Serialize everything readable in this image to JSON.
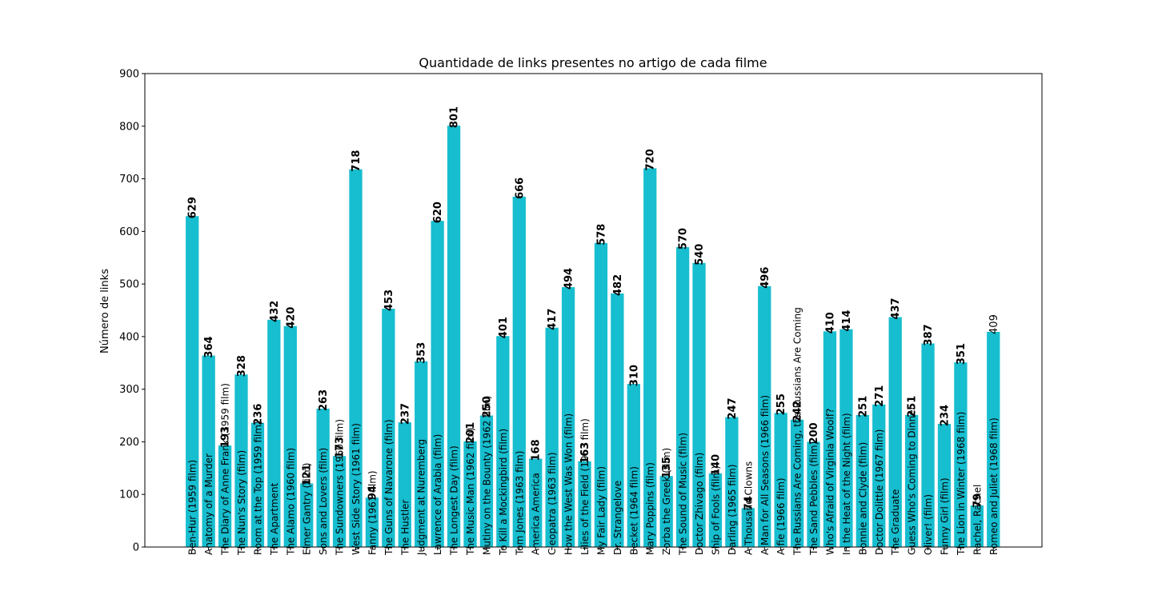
{
  "chart_data": {
    "type": "bar",
    "title": "Quantidade de links presentes no artigo de cada filme",
    "xlabel": "",
    "ylabel": "Número de links",
    "ylim": [
      0,
      900
    ],
    "yticks": [
      "0",
      "100",
      "200",
      "300",
      "400",
      "500",
      "600",
      "700",
      "800",
      "900"
    ],
    "grid": false,
    "bar_color": "#17becf",
    "categories": [
      "Ben-Hur (1959 film)",
      "Anatomy of a Murder",
      "The Diary of Anne Frank (1959 film)",
      "The Nun's Story (film)",
      "Room at the Top (1959 film)",
      "The Apartment",
      "The Alamo (1960 film)",
      "Elmer Gantry (film)",
      "Sons and Lovers (film)",
      "The Sundowners (1960 film)",
      "West Side Story (1961 film)",
      "Fanny (1961 film)",
      "The Guns of Navarone (film)",
      "The Hustler",
      "Judgment at Nuremberg",
      "Lawrence of Arabia (film)",
      "The Longest Day (film)",
      "The Music Man (1962 film)",
      "Mutiny on the Bounty (1962 film)",
      "To Kill a Mockingbird (film)",
      "Tom Jones (1963 film)",
      "America America",
      "Cleopatra (1963 film)",
      "How the West Was Won (film)",
      "Lilies of the Field (1963 film)",
      "My Fair Lady (film)",
      "Dr. Strangelove",
      "Becket (1964 film)",
      "Mary Poppins (film)",
      "Zorba the Greek (film)",
      "The Sound of Music (film)",
      "Doctor Zhivago (film)",
      "Ship of Fools (film)",
      "Darling (1965 film)",
      "A Thousand Clowns",
      "A Man for All Seasons (1966 film)",
      "Alfie (1966 film)",
      "The Russians Are Coming, the Russians Are Coming",
      "The Sand Pebbles (film)",
      "Who's Afraid of Virginia Woolf?",
      "In the Heat of the Night (film)",
      "Bonnie and Clyde (film)",
      "Doctor Dolittle (1967 film)",
      "The Graduate",
      "Guess Who's Coming to Dinner",
      "Oliver! (film)",
      "Funny Girl (film)",
      "The Lion in Winter (1968 film)",
      "Rachel, Rachel",
      "Romeo and Juliet (1968 film)"
    ],
    "values": [
      629,
      364,
      193,
      328,
      236,
      432,
      420,
      121,
      263,
      173,
      718,
      94,
      453,
      237,
      353,
      620,
      801,
      201,
      250,
      401,
      666,
      168,
      417,
      494,
      163,
      578,
      482,
      310,
      720,
      135,
      570,
      540,
      140,
      247,
      74,
      496,
      255,
      242,
      200,
      410,
      414,
      251,
      271,
      437,
      251,
      387,
      234,
      351,
      79,
      409
    ],
    "value_labels": [
      "629",
      "364",
      "193",
      "328",
      "236",
      "432",
      "420",
      "121",
      "263",
      "173",
      "718",
      "94",
      "453",
      "237",
      "353",
      "620",
      "801",
      "201",
      "250",
      "401",
      "666",
      "168",
      "417",
      "494",
      "163",
      "578",
      "482",
      "310",
      "720",
      "135",
      "570",
      "540",
      "140",
      "247",
      "74",
      "496",
      "255",
      "242",
      "200",
      "410",
      "414",
      "251",
      "271",
      "437",
      "251",
      "387",
      "234",
      "351",
      "79",
      "409"
    ]
  }
}
